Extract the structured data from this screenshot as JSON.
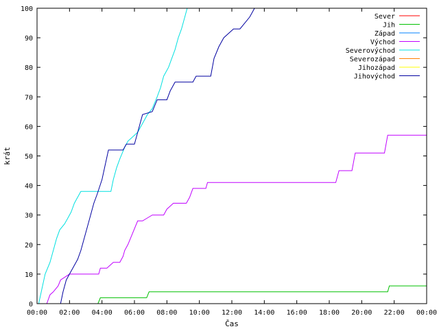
{
  "chart_data": {
    "type": "line",
    "xlabel": "Čas",
    "ylabel": "krát",
    "xlim": [
      0,
      24
    ],
    "ylim": [
      0,
      100
    ],
    "x_ticks": [
      {
        "x": 0,
        "label": "00:00"
      },
      {
        "x": 2,
        "label": "02:00"
      },
      {
        "x": 4,
        "label": "04:00"
      },
      {
        "x": 6,
        "label": "06:00"
      },
      {
        "x": 8,
        "label": "08:00"
      },
      {
        "x": 10,
        "label": "10:00"
      },
      {
        "x": 12,
        "label": "12:00"
      },
      {
        "x": 14,
        "label": "14:00"
      },
      {
        "x": 16,
        "label": "16:00"
      },
      {
        "x": 18,
        "label": "18:00"
      },
      {
        "x": 20,
        "label": "20:00"
      },
      {
        "x": 22,
        "label": "22:00"
      },
      {
        "x": 24,
        "label": "00:00"
      }
    ],
    "y_ticks": [
      {
        "y": 0,
        "label": "0"
      },
      {
        "y": 10,
        "label": "10"
      },
      {
        "y": 20,
        "label": "20"
      },
      {
        "y": 30,
        "label": "30"
      },
      {
        "y": 40,
        "label": "40"
      },
      {
        "y": 50,
        "label": "50"
      },
      {
        "y": 60,
        "label": "60"
      },
      {
        "y": 70,
        "label": "70"
      },
      {
        "y": 80,
        "label": "80"
      },
      {
        "y": 90,
        "label": "90"
      },
      {
        "y": 100,
        "label": "100"
      }
    ],
    "legend_position": "top-right",
    "series": [
      {
        "name": "Sever",
        "color": "#ff0000",
        "x": [],
        "y": []
      },
      {
        "name": "Jih",
        "color": "#00c000",
        "x": [
          3.75,
          3.9,
          6.75,
          6.9,
          21.6,
          21.7,
          24
        ],
        "y": [
          0,
          2,
          2,
          4,
          4,
          6,
          6
        ]
      },
      {
        "name": "Západ",
        "color": "#0080ff",
        "x": [],
        "y": []
      },
      {
        "name": "Východ",
        "color": "#c000ff",
        "x": [
          0.6,
          0.8,
          1.0,
          1.3,
          1.45,
          2.0,
          3.8,
          3.9,
          4.3,
          4.5,
          4.7,
          5.1,
          5.3,
          5.4,
          5.6,
          5.9,
          6.2,
          6.5,
          6.8,
          7.1,
          7.8,
          8.0,
          8.4,
          9.2,
          9.4,
          9.6,
          10.4,
          10.5,
          18.4,
          18.6,
          19.4,
          19.6,
          21.4,
          21.6,
          24
        ],
        "y": [
          0,
          3,
          4,
          6,
          8,
          10,
          10,
          12,
          12,
          13,
          14,
          14,
          16,
          18,
          20,
          24,
          28,
          28,
          29,
          30,
          30,
          32,
          34,
          34,
          36,
          39,
          39,
          41,
          41,
          45,
          45,
          51,
          51,
          57,
          57
        ]
      },
      {
        "name": "Severovýchod",
        "color": "#00e0e0",
        "x": [
          0.1,
          0.3,
          0.5,
          0.8,
          1.0,
          1.2,
          1.4,
          1.7,
          1.9,
          2.1,
          2.3,
          2.5,
          2.7,
          4.55,
          4.7,
          4.9,
          5.1,
          5.25,
          5.4,
          5.6,
          5.8,
          6.2,
          6.5,
          6.8,
          7.1,
          7.4,
          7.6,
          7.8,
          8.1,
          8.3,
          8.5,
          8.7,
          8.9,
          9.1,
          9.25
        ],
        "y": [
          0,
          5,
          10,
          14,
          18,
          22,
          25,
          27,
          29,
          31,
          34,
          36,
          38,
          38,
          42,
          46,
          49,
          51,
          53,
          55,
          56,
          58,
          61,
          64,
          66,
          70,
          73,
          77,
          80,
          83,
          86,
          90,
          93,
          97,
          100
        ]
      },
      {
        "name": "Severozápad",
        "color": "#ff8000",
        "x": [],
        "y": []
      },
      {
        "name": "Jihozápad",
        "color": "#ffff00",
        "x": [],
        "y": []
      },
      {
        "name": "Jihovýchod",
        "color": "#0000a0",
        "x": [
          1.45,
          1.6,
          1.8,
          2.0,
          2.2,
          2.5,
          2.7,
          2.9,
          3.1,
          3.3,
          3.5,
          3.7,
          4.0,
          4.2,
          4.4,
          5.3,
          5.5,
          6.0,
          6.1,
          6.3,
          6.5,
          7.1,
          7.4,
          8.0,
          8.2,
          8.5,
          9.6,
          9.8,
          10.7,
          10.9,
          11.2,
          11.5,
          12.1,
          12.5,
          12.8,
          13.1,
          13.4
        ],
        "y": [
          0,
          4,
          8,
          10,
          12,
          15,
          18,
          22,
          26,
          30,
          34,
          37,
          42,
          47,
          52,
          52,
          54,
          54,
          56,
          60,
          64,
          65,
          69,
          69,
          72,
          75,
          75,
          77,
          77,
          83,
          87,
          90,
          93,
          93,
          95,
          97,
          100
        ]
      }
    ]
  }
}
